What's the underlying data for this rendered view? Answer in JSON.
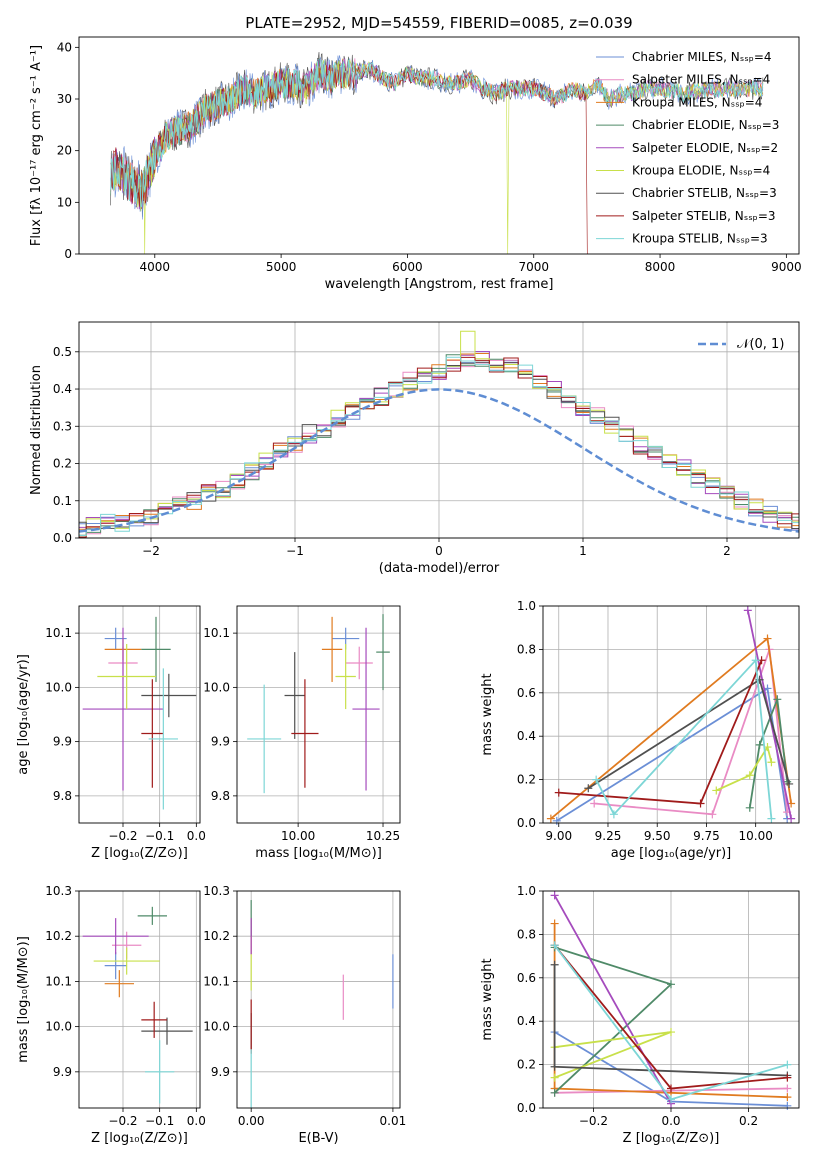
{
  "colors": [
    "#6b8fd6",
    "#e98bc4",
    "#e07b20",
    "#4f8a68",
    "#a54bbd",
    "#c8e04a",
    "#505050",
    "#a01b1b",
    "#7dd6d6"
  ],
  "chart_data": [
    {
      "type": "line",
      "title": "PLATE=2952, MJD=54559, FIBERID=0085, z=0.039",
      "xlabel": "wavelength [Angstrom, rest frame]",
      "ylabel": "Flux [f_λ 10^-17 erg cm^-2 s^-1 A^-1]",
      "xlim": [
        3400,
        9100
      ],
      "ylim": [
        0,
        42
      ],
      "xticks": [
        4000,
        5000,
        6000,
        7000,
        8000,
        9000
      ],
      "yticks": [
        0,
        10,
        20,
        30,
        40
      ],
      "legend_position": "top-right",
      "series": [
        {
          "name": "Chabrier MILES, N_SSP=4"
        },
        {
          "name": "Salpeter MILES, N_SSP=4"
        },
        {
          "name": "Kroupa MILES, N_SSP=4"
        },
        {
          "name": "Chabrier ELODIE, N_SSP=3"
        },
        {
          "name": "Salpeter ELODIE, N_SSP=2"
        },
        {
          "name": "Kroupa ELODIE, N_SSP=4"
        },
        {
          "name": "Chabrier STELIB, N_SSP=3"
        },
        {
          "name": "Salpeter STELIB, N_SSP=3"
        },
        {
          "name": "Kroupa STELIB, N_SSP=3"
        }
      ],
      "continuum": {
        "x": [
          3650,
          3700,
          3800,
          3900,
          4000,
          4100,
          4200,
          4300,
          4400,
          4500,
          4600,
          4700,
          4800,
          4900,
          5000,
          5100,
          5200,
          5300,
          5400,
          5500,
          5600,
          5700,
          5800,
          5900,
          6000,
          6100,
          6200,
          6300,
          6400,
          6500,
          6600,
          6700,
          6800,
          6900,
          7000,
          7100,
          7200,
          7300,
          7400,
          7500,
          7600,
          7700,
          7800,
          7900,
          8000,
          8200,
          8400,
          8600,
          8800
        ],
        "y": [
          15,
          17,
          14,
          12,
          19,
          23,
          24,
          25,
          28,
          29,
          30,
          32,
          31,
          32,
          33,
          33,
          32,
          35,
          34,
          35,
          35,
          36,
          34,
          33,
          35,
          34,
          34,
          33,
          33,
          34,
          32,
          31,
          32,
          32,
          32,
          31,
          30,
          32,
          31,
          33,
          30,
          31,
          31,
          32,
          32,
          31,
          32,
          32,
          32
        ]
      },
      "drops": [
        {
          "series": "Kroupa ELODIE, N_SSP=4",
          "x": 3920,
          "y": 0
        },
        {
          "series": "Kroupa ELODIE, N_SSP=4",
          "x": 6790,
          "y": 0
        },
        {
          "series": "Salpeter STELIB, N_SSP=3",
          "x": 7420,
          "y": 0
        }
      ]
    },
    {
      "type": "histogram",
      "xlabel": "(data-model)/error",
      "ylabel": "Normed distribution",
      "xlim": [
        -2.5,
        2.5
      ],
      "ylim": [
        0,
        0.58
      ],
      "xticks": [
        -2,
        -1,
        0,
        1,
        2
      ],
      "yticks": [
        0.0,
        0.1,
        0.2,
        0.3,
        0.4,
        0.5
      ],
      "legend": [
        "N(0,1)"
      ],
      "legend_position": "top-right",
      "reference_curve": "N(0,1)",
      "bin_width": 0.1,
      "base_values": [
        0.02,
        0.02,
        0.03,
        0.04,
        0.04,
        0.05,
        0.06,
        0.07,
        0.09,
        0.1,
        0.12,
        0.13,
        0.15,
        0.18,
        0.21,
        0.23,
        0.25,
        0.28,
        0.29,
        0.32,
        0.34,
        0.36,
        0.38,
        0.4,
        0.42,
        0.44,
        0.45,
        0.47,
        0.48,
        0.48,
        0.47,
        0.46,
        0.44,
        0.42,
        0.4,
        0.37,
        0.35,
        0.33,
        0.3,
        0.28,
        0.25,
        0.23,
        0.21,
        0.19,
        0.16,
        0.14,
        0.12,
        0.1,
        0.08,
        0.06,
        0.05,
        0.04,
        0.03
      ]
    },
    {
      "type": "errorbar",
      "xlabel": "Z [log10(Z/Z_sun)]",
      "ylabel": "age  [log10(age/yr)]",
      "xlim": [
        -0.32,
        0.01
      ],
      "ylim": [
        9.75,
        10.15
      ],
      "xticks": [
        -0.2,
        -0.1,
        0.0
      ],
      "xticklabels": [
        "−0.2",
        "−0.1",
        "0.0"
      ],
      "yticks": [
        9.8,
        9.9,
        10.0,
        10.1
      ],
      "points": [
        {
          "x": -0.22,
          "y": 10.09,
          "xerr": 0.03,
          "yerr": 0.02
        },
        {
          "x": -0.2,
          "y": 10.045,
          "xerr": 0.04,
          "yerr": 0.03
        },
        {
          "x": -0.2,
          "y": 10.07,
          "xerr": 0.05,
          "yerr": 0.02
        },
        {
          "x": -0.11,
          "y": 10.07,
          "xerr": 0.04,
          "yerr": 0.06
        },
        {
          "x": -0.2,
          "y": 9.96,
          "xerr": 0.11,
          "yerr": 0.15
        },
        {
          "x": -0.19,
          "y": 10.02,
          "xerr": 0.08,
          "yerr": 0.06
        },
        {
          "x": -0.075,
          "y": 9.985,
          "xerr": 0.075,
          "yerr": 0.04
        },
        {
          "x": -0.12,
          "y": 9.915,
          "xerr": 0.03,
          "yerr": 0.1
        },
        {
          "x": -0.09,
          "y": 9.905,
          "xerr": 0.04,
          "yerr": 0.13
        }
      ]
    },
    {
      "type": "errorbar",
      "xlabel": "mass [log10(M/M_sun)]",
      "ylabel": "",
      "xlim": [
        9.82,
        10.3
      ],
      "ylim": [
        9.75,
        10.15
      ],
      "xticks": [
        10.0,
        10.25
      ],
      "xticklabels": [
        "10.00",
        "10.25"
      ],
      "yticks": [
        9.8,
        9.9,
        10.0,
        10.1
      ],
      "points": [
        {
          "x": 10.14,
          "y": 10.09,
          "xerr": 0.04,
          "yerr": 0.02
        },
        {
          "x": 10.18,
          "y": 10.045,
          "xerr": 0.04,
          "yerr": 0.03
        },
        {
          "x": 10.1,
          "y": 10.07,
          "xerr": 0.03,
          "yerr": 0.06
        },
        {
          "x": 10.25,
          "y": 10.065,
          "xerr": 0.02,
          "yerr": 0.07
        },
        {
          "x": 10.2,
          "y": 9.96,
          "xerr": 0.04,
          "yerr": 0.15
        },
        {
          "x": 10.14,
          "y": 10.02,
          "xerr": 0.03,
          "yerr": 0.06
        },
        {
          "x": 9.99,
          "y": 9.985,
          "xerr": 0.03,
          "yerr": 0.08
        },
        {
          "x": 10.02,
          "y": 9.915,
          "xerr": 0.04,
          "yerr": 0.1
        },
        {
          "x": 9.9,
          "y": 9.905,
          "xerr": 0.05,
          "yerr": 0.1
        }
      ]
    },
    {
      "type": "line",
      "xlabel": "age  [log10(age/yr)]",
      "ylabel": "mass weight",
      "xlim": [
        8.92,
        10.22
      ],
      "ylim": [
        0,
        1.0
      ],
      "xticks": [
        9.0,
        9.25,
        9.5,
        9.75,
        10.0
      ],
      "xticklabels": [
        "9.00",
        "9.25",
        "9.50",
        "9.75",
        "10.00"
      ],
      "yticks": [
        0.0,
        0.2,
        0.4,
        0.6,
        0.8,
        1.0
      ],
      "series": [
        {
          "x": [
            8.99,
            10.06,
            10.16
          ],
          "y": [
            0.01,
            0.62,
            0.02
          ]
        },
        {
          "x": [
            9.18,
            9.78,
            10.07,
            10.16
          ],
          "y": [
            0.09,
            0.04,
            0.8,
            0.05
          ]
        },
        {
          "x": [
            8.96,
            10.06,
            10.18
          ],
          "y": [
            0.02,
            0.85,
            0.09
          ]
        },
        {
          "x": [
            9.97,
            10.02,
            10.11,
            10.16
          ],
          "y": [
            0.07,
            0.36,
            0.57,
            0.19
          ]
        },
        {
          "x": [
            9.96,
            10.18
          ],
          "y": [
            0.98,
            0.02
          ]
        },
        {
          "x": [
            9.8,
            9.97,
            10.06,
            10.08
          ],
          "y": [
            0.15,
            0.22,
            0.35,
            0.28
          ]
        },
        {
          "x": [
            9.15,
            10.02,
            10.17
          ],
          "y": [
            0.16,
            0.66,
            0.18
          ]
        },
        {
          "x": [
            9.0,
            9.72,
            10.03
          ],
          "y": [
            0.14,
            0.09,
            0.75
          ]
        },
        {
          "x": [
            9.19,
            9.28,
            10.0,
            10.08
          ],
          "y": [
            0.2,
            0.04,
            0.75,
            0.02
          ]
        }
      ]
    },
    {
      "type": "errorbar",
      "xlabel": "Z [log10(Z/Z_sun)]",
      "ylabel": "mass [log10(M/M_sun)]",
      "xlim": [
        -0.32,
        0.01
      ],
      "ylim": [
        9.82,
        10.3
      ],
      "xticks": [
        -0.2,
        -0.1,
        0.0
      ],
      "xticklabels": [
        "−0.2",
        "−0.1",
        "0.0"
      ],
      "yticks": [
        9.9,
        10.0,
        10.1,
        10.2,
        10.3
      ],
      "points": [
        {
          "x": -0.22,
          "y": 10.135,
          "xerr": 0.03,
          "yerr": 0.03
        },
        {
          "x": -0.19,
          "y": 10.18,
          "xerr": 0.04,
          "yerr": 0.03
        },
        {
          "x": -0.21,
          "y": 10.095,
          "xerr": 0.04,
          "yerr": 0.03
        },
        {
          "x": -0.12,
          "y": 10.245,
          "xerr": 0.04,
          "yerr": 0.02
        },
        {
          "x": -0.22,
          "y": 10.2,
          "xerr": 0.09,
          "yerr": 0.04
        },
        {
          "x": -0.19,
          "y": 10.145,
          "xerr": 0.09,
          "yerr": 0.03
        },
        {
          "x": -0.08,
          "y": 9.99,
          "xerr": 0.07,
          "yerr": 0.03
        },
        {
          "x": -0.115,
          "y": 10.015,
          "xerr": 0.035,
          "yerr": 0.04
        },
        {
          "x": -0.1,
          "y": 9.9,
          "xerr": 0.04,
          "yerr": 0.07
        }
      ]
    },
    {
      "type": "errorbar",
      "xlabel": "E(B-V)",
      "ylabel": "",
      "xlim": [
        -0.001,
        0.0105
      ],
      "ylim": [
        9.82,
        10.3
      ],
      "xticks": [
        0.0,
        0.01
      ],
      "xticklabels": [
        "0.00",
        "0.01"
      ],
      "yticks": [
        9.9,
        10.0,
        10.1,
        10.2,
        10.3
      ],
      "points": [
        {
          "x": 0.01,
          "y": 10.1,
          "xerr": 0,
          "yerr": 0.06
        },
        {
          "x": 0.0065,
          "y": 10.065,
          "xerr": 0,
          "yerr": 0.05
        },
        {
          "x": 0.0,
          "y": 10.2,
          "xerr": 0,
          "yerr": 0.04
        },
        {
          "x": 0.0,
          "y": 10.24,
          "xerr": 0,
          "yerr": 0.04
        },
        {
          "x": 0.0,
          "y": 10.2,
          "xerr": 0,
          "yerr": 0.04
        },
        {
          "x": 0.0,
          "y": 10.12,
          "xerr": 0,
          "yerr": 0.04
        },
        {
          "x": 0.0,
          "y": 9.99,
          "xerr": 0,
          "yerr": 0.04
        },
        {
          "x": 0.0,
          "y": 10.0,
          "xerr": 0,
          "yerr": 0.06
        },
        {
          "x": 0.0,
          "y": 9.88,
          "xerr": 0,
          "yerr": 0.07
        }
      ]
    },
    {
      "type": "line",
      "xlabel": "Z [log10(Z/Z_sun)]",
      "ylabel": "mass weight",
      "xlim": [
        -0.33,
        0.33
      ],
      "ylim": [
        0,
        1.0
      ],
      "xticks": [
        -0.2,
        0.0,
        0.2
      ],
      "xticklabels": [
        "−0.2",
        "0.0",
        "0.2"
      ],
      "yticks": [
        0.0,
        0.2,
        0.4,
        0.6,
        0.8,
        1.0
      ],
      "series": [
        {
          "x": [
            -0.3,
            0.0,
            0.3
          ],
          "y": [
            0.35,
            0.03,
            0.01
          ]
        },
        {
          "x": [
            -0.3,
            0.0,
            0.3
          ],
          "y": [
            0.07,
            0.08,
            0.09
          ]
        },
        {
          "x": [
            -0.3,
            -0.3,
            0.0,
            0.3
          ],
          "y": [
            0.85,
            0.09,
            0.07,
            0.05
          ]
        },
        {
          "x": [
            -0.3,
            0.0,
            -0.3
          ],
          "y": [
            0.07,
            0.57,
            0.74
          ]
        },
        {
          "x": [
            -0.3,
            0.0
          ],
          "y": [
            0.98,
            0.02
          ]
        },
        {
          "x": [
            -0.3,
            0.0,
            -0.3
          ],
          "y": [
            0.28,
            0.35,
            0.14
          ]
        },
        {
          "x": [
            -0.3,
            -0.3,
            0.3
          ],
          "y": [
            0.66,
            0.19,
            0.15
          ]
        },
        {
          "x": [
            -0.3,
            0.0,
            0.3
          ],
          "y": [
            0.75,
            0.09,
            0.14
          ]
        },
        {
          "x": [
            -0.3,
            0.0,
            0.3
          ],
          "y": [
            0.75,
            0.04,
            0.2
          ]
        }
      ]
    }
  ]
}
